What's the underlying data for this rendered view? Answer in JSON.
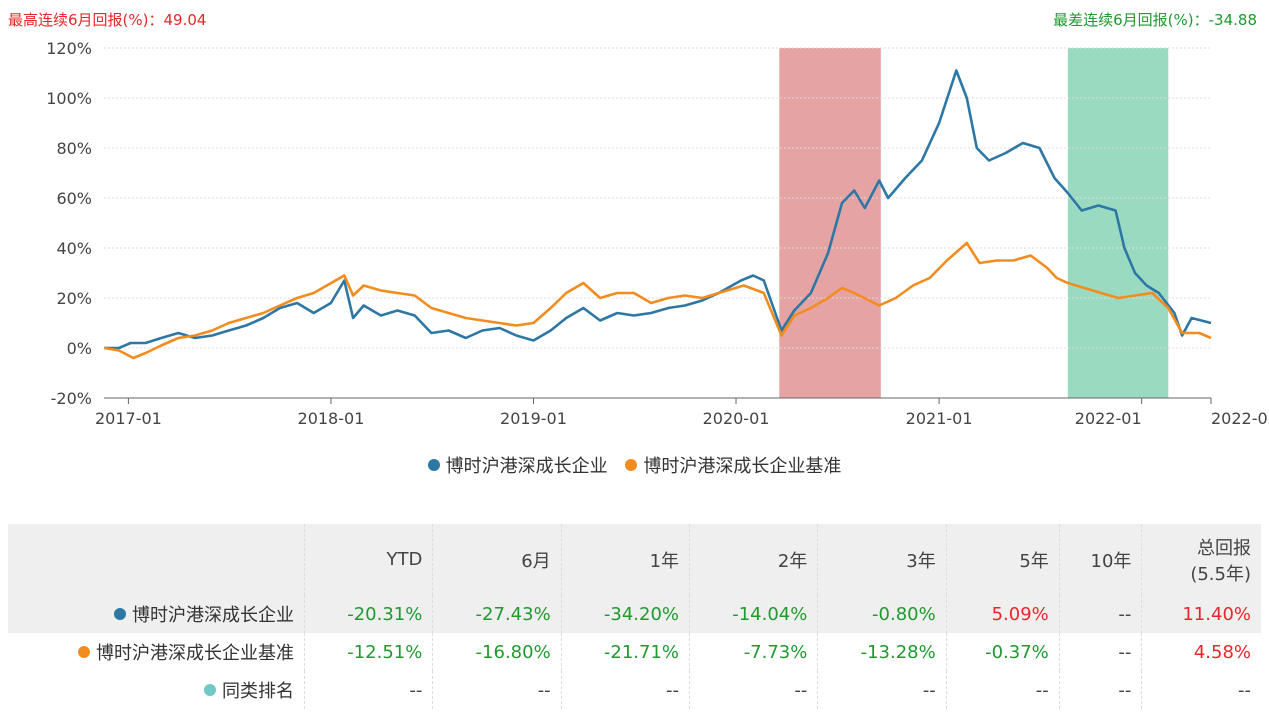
{
  "header": {
    "best_label": "最高连续6月回报(%)：49.04",
    "worst_label": "最差连续6月回报(%)：-34.88"
  },
  "legend": {
    "fund": "博时沪港深成长企业",
    "benchmark": "博时沪港深成长企业基准"
  },
  "colors": {
    "fund": "#2d77a5",
    "benchmark": "#f28c1e",
    "best_band": "#d66b6b",
    "worst_band": "#5cc399",
    "peer": "#6fc9c9"
  },
  "chart_data": {
    "type": "line",
    "xlim": [
      "2016-11-18",
      "2022-05-06"
    ],
    "ylim": [
      -20,
      120
    ],
    "yticks": [
      "-20%",
      "0%",
      "20%",
      "40%",
      "60%",
      "80%",
      "100%",
      "120%"
    ],
    "xticks": [
      {
        "label": "2017-01",
        "date": "2017-01-01"
      },
      {
        "label": "2018-01",
        "date": "2018-01-01"
      },
      {
        "label": "2019-01",
        "date": "2019-01-01"
      },
      {
        "label": "2020-01",
        "date": "2020-01-01"
      },
      {
        "label": "2021-01",
        "date": "2021-01-01"
      },
      {
        "label": "2022-01",
        "date": "2022-01-01"
      },
      {
        "label": "2022-05",
        "date": "2022-05-06"
      }
    ],
    "bands": [
      {
        "kind": "best",
        "start": "2020-03-19",
        "end": "2020-09-18"
      },
      {
        "kind": "worst",
        "start": "2021-08-21",
        "end": "2022-02-18"
      }
    ],
    "series": [
      {
        "name": "博时沪港深成长企业",
        "points": [
          [
            "2016-11-18",
            0
          ],
          [
            "2016-12-15",
            0
          ],
          [
            "2017-01-05",
            2
          ],
          [
            "2017-02-01",
            2
          ],
          [
            "2017-03-01",
            4
          ],
          [
            "2017-04-01",
            6
          ],
          [
            "2017-05-01",
            4
          ],
          [
            "2017-06-01",
            5
          ],
          [
            "2017-07-01",
            7
          ],
          [
            "2017-08-01",
            9
          ],
          [
            "2017-09-01",
            12
          ],
          [
            "2017-10-01",
            16
          ],
          [
            "2017-11-01",
            18
          ],
          [
            "2017-12-01",
            14
          ],
          [
            "2018-01-01",
            18
          ],
          [
            "2018-01-25",
            27
          ],
          [
            "2018-02-10",
            12
          ],
          [
            "2018-03-01",
            17
          ],
          [
            "2018-04-01",
            13
          ],
          [
            "2018-05-01",
            15
          ],
          [
            "2018-06-01",
            13
          ],
          [
            "2018-07-01",
            6
          ],
          [
            "2018-08-01",
            7
          ],
          [
            "2018-09-01",
            4
          ],
          [
            "2018-10-01",
            7
          ],
          [
            "2018-11-01",
            8
          ],
          [
            "2018-12-01",
            5
          ],
          [
            "2019-01-01",
            3
          ],
          [
            "2019-02-01",
            7
          ],
          [
            "2019-03-01",
            12
          ],
          [
            "2019-04-01",
            16
          ],
          [
            "2019-05-01",
            11
          ],
          [
            "2019-06-01",
            14
          ],
          [
            "2019-07-01",
            13
          ],
          [
            "2019-08-01",
            14
          ],
          [
            "2019-09-01",
            16
          ],
          [
            "2019-10-01",
            17
          ],
          [
            "2019-11-01",
            19
          ],
          [
            "2019-12-01",
            22
          ],
          [
            "2020-01-10",
            27
          ],
          [
            "2020-02-01",
            29
          ],
          [
            "2020-02-20",
            27
          ],
          [
            "2020-03-23",
            7
          ],
          [
            "2020-04-15",
            15
          ],
          [
            "2020-05-15",
            22
          ],
          [
            "2020-06-15",
            38
          ],
          [
            "2020-07-10",
            58
          ],
          [
            "2020-08-01",
            63
          ],
          [
            "2020-08-20",
            56
          ],
          [
            "2020-09-15",
            67
          ],
          [
            "2020-10-01",
            60
          ],
          [
            "2020-11-01",
            68
          ],
          [
            "2020-12-01",
            75
          ],
          [
            "2021-01-01",
            90
          ],
          [
            "2021-02-01",
            111
          ],
          [
            "2021-02-20",
            100
          ],
          [
            "2021-03-10",
            80
          ],
          [
            "2021-04-01",
            75
          ],
          [
            "2021-05-01",
            78
          ],
          [
            "2021-06-01",
            82
          ],
          [
            "2021-07-01",
            80
          ],
          [
            "2021-07-28",
            68
          ],
          [
            "2021-08-21",
            62
          ],
          [
            "2021-09-15",
            55
          ],
          [
            "2021-10-15",
            57
          ],
          [
            "2021-11-15",
            55
          ],
          [
            "2021-12-01",
            40
          ],
          [
            "2021-12-20",
            30
          ],
          [
            "2022-01-10",
            25
          ],
          [
            "2022-02-01",
            22
          ],
          [
            "2022-03-01",
            14
          ],
          [
            "2022-03-15",
            5
          ],
          [
            "2022-04-01",
            12
          ],
          [
            "2022-05-06",
            10
          ]
        ]
      },
      {
        "name": "博时沪港深成长企业基准",
        "points": [
          [
            "2016-11-18",
            0
          ],
          [
            "2016-12-15",
            -1
          ],
          [
            "2017-01-10",
            -4
          ],
          [
            "2017-02-01",
            -2
          ],
          [
            "2017-03-01",
            1
          ],
          [
            "2017-04-01",
            4
          ],
          [
            "2017-05-01",
            5
          ],
          [
            "2017-06-01",
            7
          ],
          [
            "2017-07-01",
            10
          ],
          [
            "2017-08-01",
            12
          ],
          [
            "2017-09-01",
            14
          ],
          [
            "2017-10-01",
            17
          ],
          [
            "2017-11-01",
            20
          ],
          [
            "2017-12-01",
            22
          ],
          [
            "2018-01-25",
            29
          ],
          [
            "2018-02-10",
            21
          ],
          [
            "2018-03-01",
            25
          ],
          [
            "2018-04-01",
            23
          ],
          [
            "2018-05-01",
            22
          ],
          [
            "2018-06-01",
            21
          ],
          [
            "2018-07-01",
            16
          ],
          [
            "2018-08-01",
            14
          ],
          [
            "2018-09-01",
            12
          ],
          [
            "2018-10-01",
            11
          ],
          [
            "2018-11-01",
            10
          ],
          [
            "2018-12-01",
            9
          ],
          [
            "2019-01-01",
            10
          ],
          [
            "2019-02-01",
            16
          ],
          [
            "2019-03-01",
            22
          ],
          [
            "2019-04-01",
            26
          ],
          [
            "2019-05-01",
            20
          ],
          [
            "2019-06-01",
            22
          ],
          [
            "2019-07-01",
            22
          ],
          [
            "2019-08-01",
            18
          ],
          [
            "2019-09-01",
            20
          ],
          [
            "2019-10-01",
            21
          ],
          [
            "2019-11-01",
            20
          ],
          [
            "2019-12-01",
            22
          ],
          [
            "2020-01-15",
            25
          ],
          [
            "2020-02-20",
            22
          ],
          [
            "2020-03-23",
            5
          ],
          [
            "2020-04-15",
            13
          ],
          [
            "2020-05-15",
            16
          ],
          [
            "2020-06-15",
            20
          ],
          [
            "2020-07-10",
            24
          ],
          [
            "2020-08-01",
            22
          ],
          [
            "2020-09-15",
            17
          ],
          [
            "2020-10-15",
            20
          ],
          [
            "2020-11-15",
            25
          ],
          [
            "2020-12-15",
            28
          ],
          [
            "2021-01-15",
            35
          ],
          [
            "2021-02-20",
            42
          ],
          [
            "2021-03-15",
            34
          ],
          [
            "2021-04-15",
            35
          ],
          [
            "2021-05-15",
            35
          ],
          [
            "2021-06-15",
            37
          ],
          [
            "2021-07-15",
            32
          ],
          [
            "2021-08-01",
            28
          ],
          [
            "2021-08-21",
            26
          ],
          [
            "2021-09-20",
            24
          ],
          [
            "2021-10-20",
            22
          ],
          [
            "2021-11-20",
            20
          ],
          [
            "2021-12-20",
            21
          ],
          [
            "2022-01-20",
            22
          ],
          [
            "2022-02-18",
            16
          ],
          [
            "2022-03-15",
            6
          ],
          [
            "2022-04-15",
            6
          ],
          [
            "2022-05-06",
            4
          ]
        ]
      }
    ]
  },
  "table": {
    "columns": [
      "YTD",
      "6月",
      "1年",
      "2年",
      "3年",
      "5年",
      "10年",
      "总回报",
      "(5.5年)"
    ],
    "rows": [
      {
        "name": "博时沪港深成长企业",
        "values": [
          "-20.31%",
          "-27.43%",
          "-34.20%",
          "-14.04%",
          "-0.80%",
          "5.09%",
          "--",
          "11.40%"
        ]
      },
      {
        "name": "博时沪港深成长企业基准",
        "values": [
          "-12.51%",
          "-16.80%",
          "-21.71%",
          "-7.73%",
          "-13.28%",
          "-0.37%",
          "--",
          "4.58%"
        ]
      },
      {
        "name": "同类排名",
        "values": [
          "--",
          "--",
          "--",
          "--",
          "--",
          "--",
          "--",
          "--"
        ]
      }
    ]
  }
}
